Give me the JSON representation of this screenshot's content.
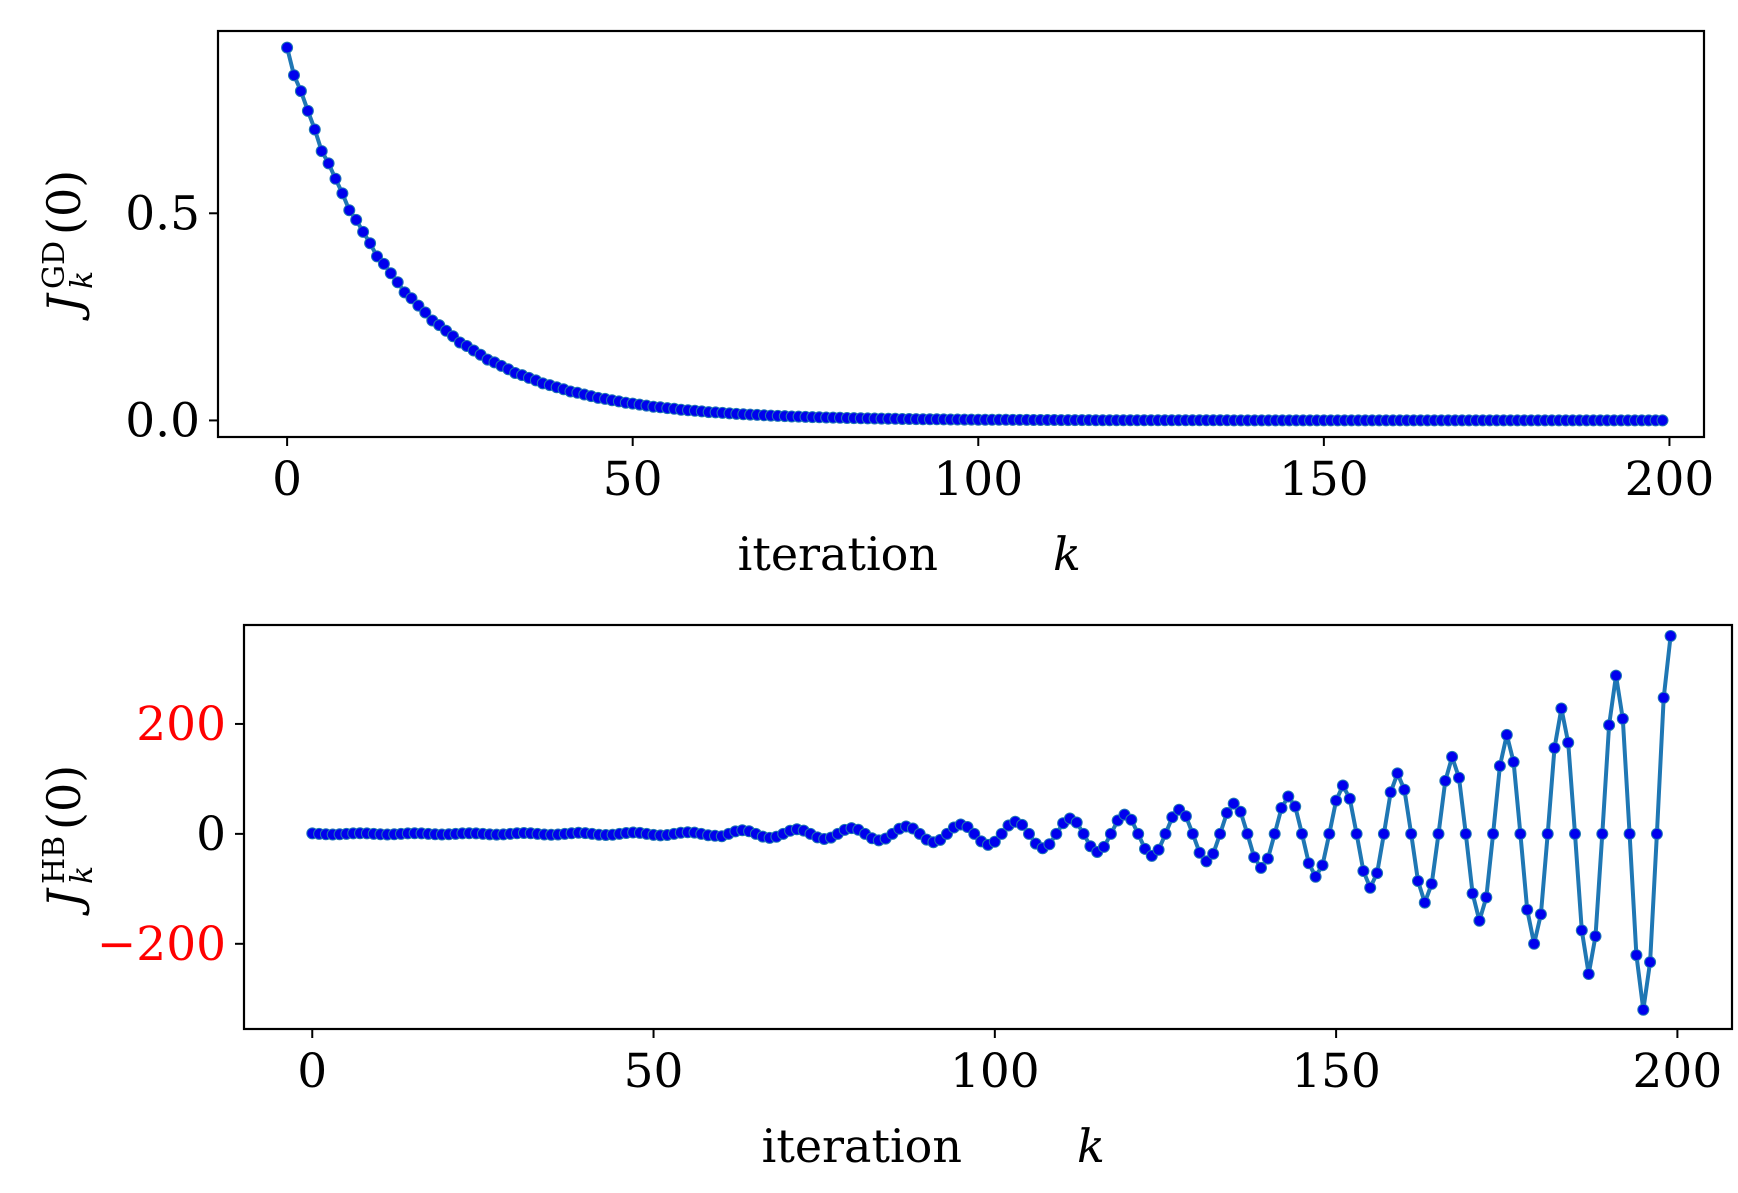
{
  "chart_data": [
    {
      "type": "line",
      "id": "gd",
      "xlabel": "iteration",
      "xlabel_var": "k",
      "ylabel": {
        "symbol": "J",
        "superscript": "GD",
        "subscript": "k",
        "argument": "(0)"
      },
      "xlim": [
        -10,
        205
      ],
      "ylim": [
        -0.04,
        0.94
      ],
      "xticks": [
        0,
        50,
        100,
        150,
        200
      ],
      "xtick_labels": [
        "0",
        "50",
        "100",
        "150",
        "200"
      ],
      "yticks": [
        0.0,
        0.5
      ],
      "ytick_labels": [
        "0.0",
        "0.5"
      ],
      "ytick_label_colors": [
        "#000000",
        "#000000"
      ],
      "line_color": "#1f77b4",
      "marker_color": "#0000ee",
      "series": [
        {
          "model": "exponential_decay",
          "x_range": [
            0,
            199
          ],
          "y0": 0.9,
          "decay_rate": 0.062,
          "values_sample": [
            {
              "x": 0,
              "y": 0.9
            },
            {
              "x": 5,
              "y": 0.63
            },
            {
              "x": 10,
              "y": 0.47
            },
            {
              "x": 20,
              "y": 0.26
            },
            {
              "x": 30,
              "y": 0.13
            },
            {
              "x": 40,
              "y": 0.07
            },
            {
              "x": 50,
              "y": 0.035
            },
            {
              "x": 75,
              "y": 0.008
            },
            {
              "x": 100,
              "y": 0.002
            },
            {
              "x": 199,
              "y": 0.0
            }
          ]
        }
      ]
    },
    {
      "type": "line",
      "id": "hb",
      "xlabel": "iteration",
      "xlabel_var": "k",
      "ylabel": {
        "symbol": "J",
        "superscript": "HB",
        "subscript": "k",
        "argument": "(0)"
      },
      "xlim": [
        -10,
        208
      ],
      "ylim": [
        -355,
        380
      ],
      "xticks": [
        0,
        50,
        100,
        150,
        200
      ],
      "xtick_labels": [
        "0",
        "50",
        "100",
        "150",
        "200"
      ],
      "yticks": [
        200,
        0,
        -200
      ],
      "ytick_labels": [
        "200",
        "0",
        "−200"
      ],
      "ytick_label_colors": [
        "#ff0000",
        "#000000",
        "#ff0000"
      ],
      "line_color": "#1f77b4",
      "marker_color": "#0000ee",
      "series": [
        {
          "model": "growing_oscillation",
          "x_range": [
            0,
            199
          ],
          "period": 8,
          "peaks": [
            {
              "x": 95,
              "y": 17
            },
            {
              "x": 103,
              "y": 22
            },
            {
              "x": 111,
              "y": 28
            },
            {
              "x": 119,
              "y": 35
            },
            {
              "x": 127,
              "y": 44
            },
            {
              "x": 135,
              "y": 55
            },
            {
              "x": 143,
              "y": 68
            },
            {
              "x": 151,
              "y": 88
            },
            {
              "x": 159,
              "y": 110
            },
            {
              "x": 167,
              "y": 140
            },
            {
              "x": 175,
              "y": 180
            },
            {
              "x": 183,
              "y": 228
            },
            {
              "x": 191,
              "y": 288
            },
            {
              "x": 199,
              "y": 360
            }
          ],
          "troughs": [
            {
              "x": 99,
              "y": -20
            },
            {
              "x": 107,
              "y": -26
            },
            {
              "x": 115,
              "y": -33
            },
            {
              "x": 123,
              "y": -40
            },
            {
              "x": 131,
              "y": -50
            },
            {
              "x": 139,
              "y": -62
            },
            {
              "x": 147,
              "y": -78
            },
            {
              "x": 155,
              "y": -98
            },
            {
              "x": 163,
              "y": -125
            },
            {
              "x": 171,
              "y": -158
            },
            {
              "x": 179,
              "y": -200
            },
            {
              "x": 187,
              "y": -255
            },
            {
              "x": 195,
              "y": -320
            }
          ]
        }
      ]
    }
  ]
}
